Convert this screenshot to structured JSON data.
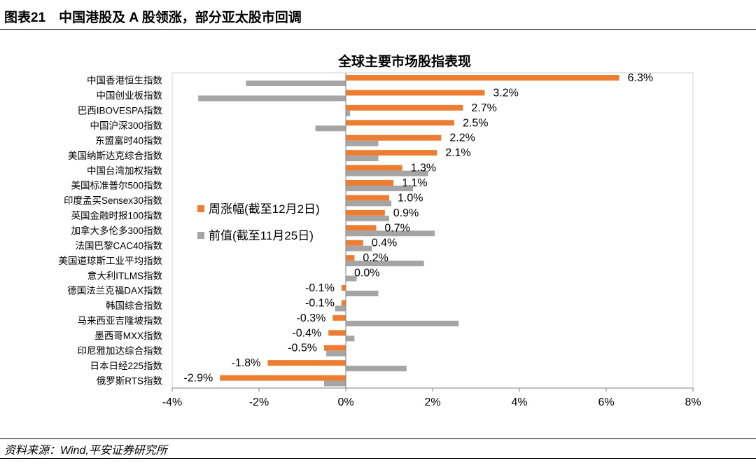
{
  "figure": {
    "title": "图表21　中国港股及 A 股领涨，部分亚太股市回调",
    "source": "资料来源：Wind,平安证券研究所"
  },
  "chart_data": {
    "type": "bar",
    "orientation": "horizontal",
    "title": "全球主要市场股指表现",
    "xlim": [
      -4,
      8
    ],
    "xticks": [
      -4,
      -2,
      0,
      2,
      4,
      6,
      8
    ],
    "xtick_labels": [
      "-4%",
      "-2%",
      "0%",
      "2%",
      "4%",
      "6%",
      "8%"
    ],
    "legend_position": "center-left",
    "categories": [
      "中国香港恒生指数",
      "中国创业板指数",
      "巴西IBOVESPA指数",
      "中国沪深300指数",
      "东盟富时40指数",
      "美国纳斯达克综合指数",
      "中国台湾加权指数",
      "美国标准普尔500指数",
      "印度孟买Sensex30指数",
      "英国金融时报100指数",
      "加拿大多伦多300指数",
      "法国巴黎CAC40指数",
      "美国道琼斯工业平均指数",
      "意大利ITLMS指数",
      "德国法兰克福DAX指数",
      "韩国综合指数",
      "马来西亚吉隆坡指数",
      "墨西哥MXX指数",
      "印尼雅加达综合指数",
      "日本日经225指数",
      "俄罗斯RTS指数"
    ],
    "series": [
      {
        "name": "周涨幅(截至12月2日)",
        "color": "#ED7D31",
        "values": [
          6.3,
          3.2,
          2.7,
          2.5,
          2.2,
          2.1,
          1.3,
          1.1,
          1.0,
          0.9,
          0.7,
          0.4,
          0.2,
          0.0,
          -0.1,
          -0.1,
          -0.3,
          -0.4,
          -0.5,
          -1.8,
          -2.9
        ],
        "labels": [
          "6.3%",
          "3.2%",
          "2.7%",
          "2.5%",
          "2.2%",
          "2.1%",
          "1.3%",
          "1.1%",
          "1.0%",
          "0.9%",
          "0.7%",
          "0.4%",
          "0.2%",
          "0.0%",
          "-0.1%",
          "-0.1%",
          "-0.3%",
          "-0.4%",
          "-0.5%",
          "-1.8%",
          "-2.9%"
        ]
      },
      {
        "name": "前值(截至11月25日)",
        "color": "#A5A5A5",
        "values": [
          -2.3,
          -3.4,
          0.1,
          -0.7,
          0.75,
          0.75,
          1.9,
          1.55,
          1.05,
          1.0,
          2.05,
          0.6,
          1.8,
          0.25,
          0.75,
          -0.25,
          2.6,
          0.2,
          -0.45,
          1.4,
          -0.5
        ]
      }
    ]
  }
}
